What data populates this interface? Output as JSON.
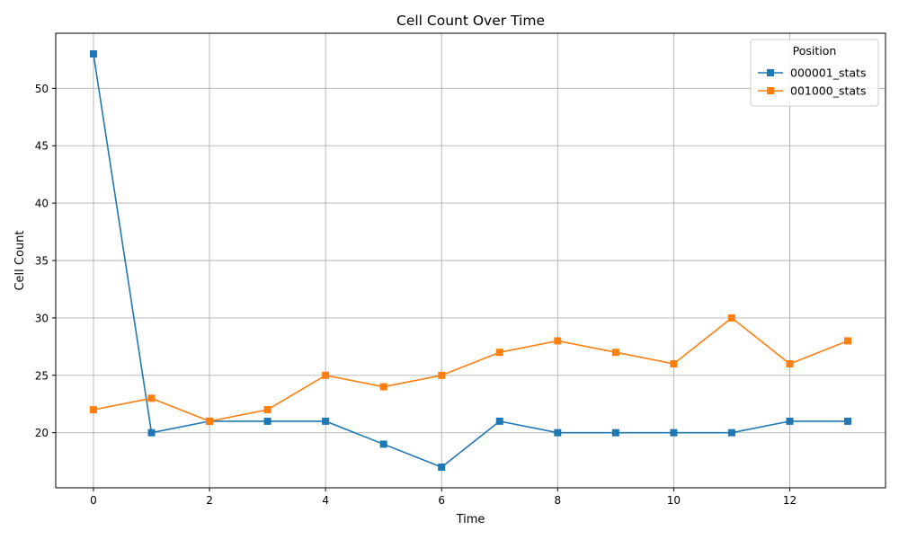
{
  "chart_data": {
    "type": "line",
    "title": "Cell Count Over Time",
    "xlabel": "Time",
    "ylabel": "Cell Count",
    "xlim": [
      -0.65,
      13.65
    ],
    "ylim": [
      15.2,
      54.8
    ],
    "xticks": [
      0,
      2,
      4,
      6,
      8,
      10,
      12
    ],
    "xtick_labels": [
      "0",
      "2",
      "4",
      "6",
      "8",
      "10",
      "12"
    ],
    "yticks": [
      20,
      25,
      30,
      35,
      40,
      45,
      50
    ],
    "ytick_labels": [
      "20",
      "25",
      "30",
      "35",
      "40",
      "45",
      "50"
    ],
    "grid": true,
    "legend": {
      "title": "Position",
      "placement": "top-right"
    },
    "marker": "square",
    "x": [
      0,
      1,
      2,
      3,
      4,
      5,
      6,
      7,
      8,
      9,
      10,
      11,
      12,
      13
    ],
    "series": [
      {
        "name": "000001_stats",
        "color": "#1f77b4",
        "values": [
          53,
          20,
          21,
          21,
          21,
          19,
          17,
          21,
          20,
          20,
          20,
          20,
          21,
          21
        ]
      },
      {
        "name": "001000_stats",
        "color": "#ff7f0e",
        "values": [
          22,
          23,
          21,
          22,
          25,
          24,
          25,
          27,
          28,
          27,
          26,
          30,
          26,
          28
        ]
      }
    ]
  }
}
